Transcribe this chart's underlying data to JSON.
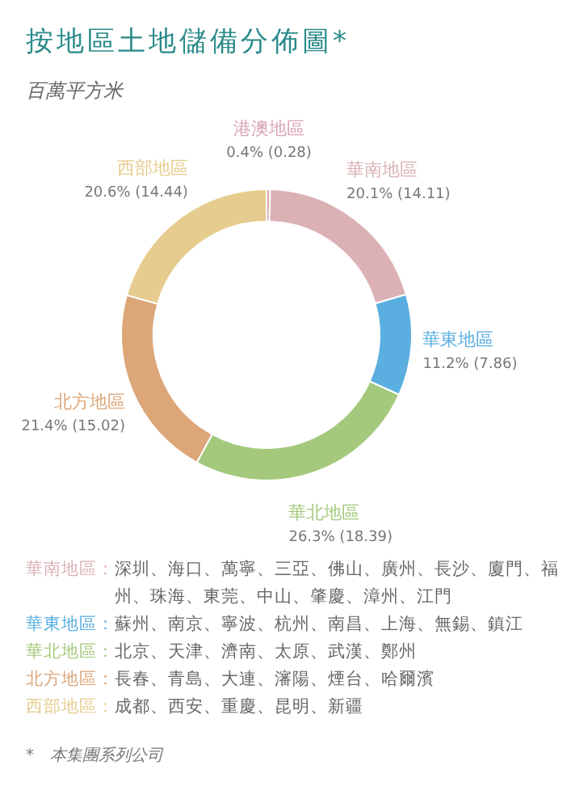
{
  "chart_data": {
    "type": "donut",
    "title": "按地區土地儲備分佈圖*",
    "subtitle": "百萬平方米",
    "categories": [
      "港澳地區",
      "華南地區",
      "華東地區",
      "華北地區",
      "北方地區",
      "西部地區"
    ],
    "values": [
      0.28,
      14.11,
      7.86,
      18.39,
      15.02,
      14.44
    ],
    "value_labels": [
      "0.4% (0.28)",
      "20.1% (14.11)",
      "11.2% (7.86)",
      "26.3% (18.39)",
      "21.4% (15.02)",
      "20.6% (14.44)"
    ],
    "colors": [
      "#d9a3b3",
      "#dbb1b5",
      "#5aafe0",
      "#a4c97d",
      "#dca678",
      "#e6cc8e"
    ],
    "annotations": [
      "華南地區：深圳、海口、萬寧、三亞、佛山、廣州、長沙、廈門、福州、珠海、東莞、中山、肇慶、漳州、江門",
      "華東地區：蘇州、南京、寧波、杭州、南昌、上海、無錫、鎮江",
      "華北地區：北京、天津、濟南、太原、武漢、鄭州",
      "北方地區：長春、青島、大連、瀋陽、煙台、哈爾濱",
      "西部地區：成都、西安、重慶、昆明、新疆",
      "*　本集團系列公司"
    ]
  }
}
